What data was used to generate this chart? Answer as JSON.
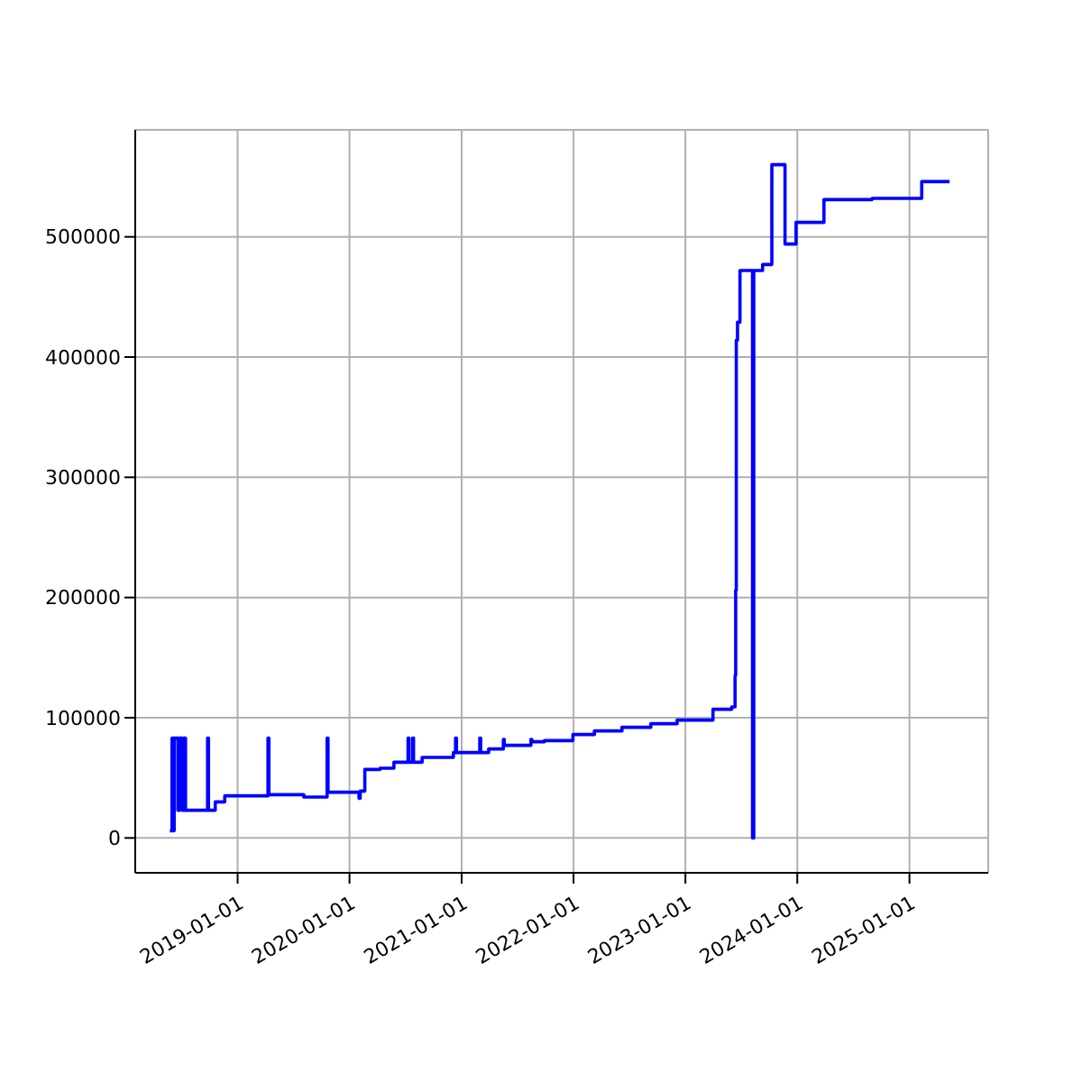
{
  "chart_data": {
    "type": "step",
    "x": [
      "2018-05-25",
      "2018-06-01",
      "2018-06-05",
      "2018-06-08",
      "2018-06-20",
      "2018-06-25",
      "2018-07-05",
      "2018-07-10",
      "2018-07-15",
      "2018-09-25",
      "2018-09-28",
      "2018-10-20",
      "2018-11-20",
      "2019-04-10",
      "2019-04-13",
      "2019-08-05",
      "2019-10-20",
      "2019-10-23",
      "2020-02-01",
      "2020-02-05",
      "2020-02-20",
      "2020-04-10",
      "2020-05-25",
      "2020-07-10",
      "2020-07-13",
      "2020-07-25",
      "2020-07-28",
      "2020-08-25",
      "2020-12-05",
      "2020-12-12",
      "2020-12-15",
      "2021-03-01",
      "2021-03-04",
      "2021-03-30",
      "2021-05-17",
      "2021-05-20",
      "2021-06-30",
      "2021-08-15",
      "2021-08-18",
      "2021-09-28",
      "2021-12-30",
      "2022-03-10",
      "2022-06-08",
      "2022-09-10",
      "2022-12-05",
      "2023-04-01",
      "2023-06-01",
      "2023-06-12",
      "2023-06-14",
      "2023-06-16",
      "2023-06-20",
      "2023-06-28",
      "2023-08-08",
      "2023-08-12",
      "2023-09-10",
      "2023-10-10",
      "2023-11-22",
      "2023-12-28",
      "2024-02-10",
      "2024-03-28",
      "2024-09-01",
      "2025-02-10",
      "2025-05-12"
    ],
    "values": [
      6000,
      83000,
      6000,
      83000,
      23000,
      83000,
      23000,
      83000,
      23000,
      83000,
      23000,
      30000,
      35000,
      83000,
      36000,
      34000,
      83000,
      38000,
      33000,
      39000,
      57000,
      58000,
      63000,
      83000,
      63000,
      83000,
      63000,
      67000,
      71000,
      83000,
      71000,
      83000,
      71000,
      74000,
      82000,
      77000,
      77000,
      82000,
      80000,
      81000,
      86000,
      89000,
      92000,
      95000,
      98000,
      107000,
      109000,
      135000,
      206000,
      414000,
      429000,
      472000,
      0,
      472000,
      477000,
      560000,
      494000,
      512000,
      512000,
      531000,
      532000,
      546000,
      546000
    ],
    "color": "#0000ff",
    "xlim": [
      "2018-02-01",
      "2025-09-15"
    ],
    "xticks": [
      "2019-01-01",
      "2020-01-01",
      "2021-01-01",
      "2022-01-01",
      "2023-01-01",
      "2024-01-01",
      "2025-01-01"
    ],
    "ylim": [
      -29000,
      589000
    ],
    "yticks": [
      0,
      100000,
      200000,
      300000,
      400000,
      500000
    ],
    "grid": true,
    "marker": "none",
    "line_style": "solid"
  }
}
